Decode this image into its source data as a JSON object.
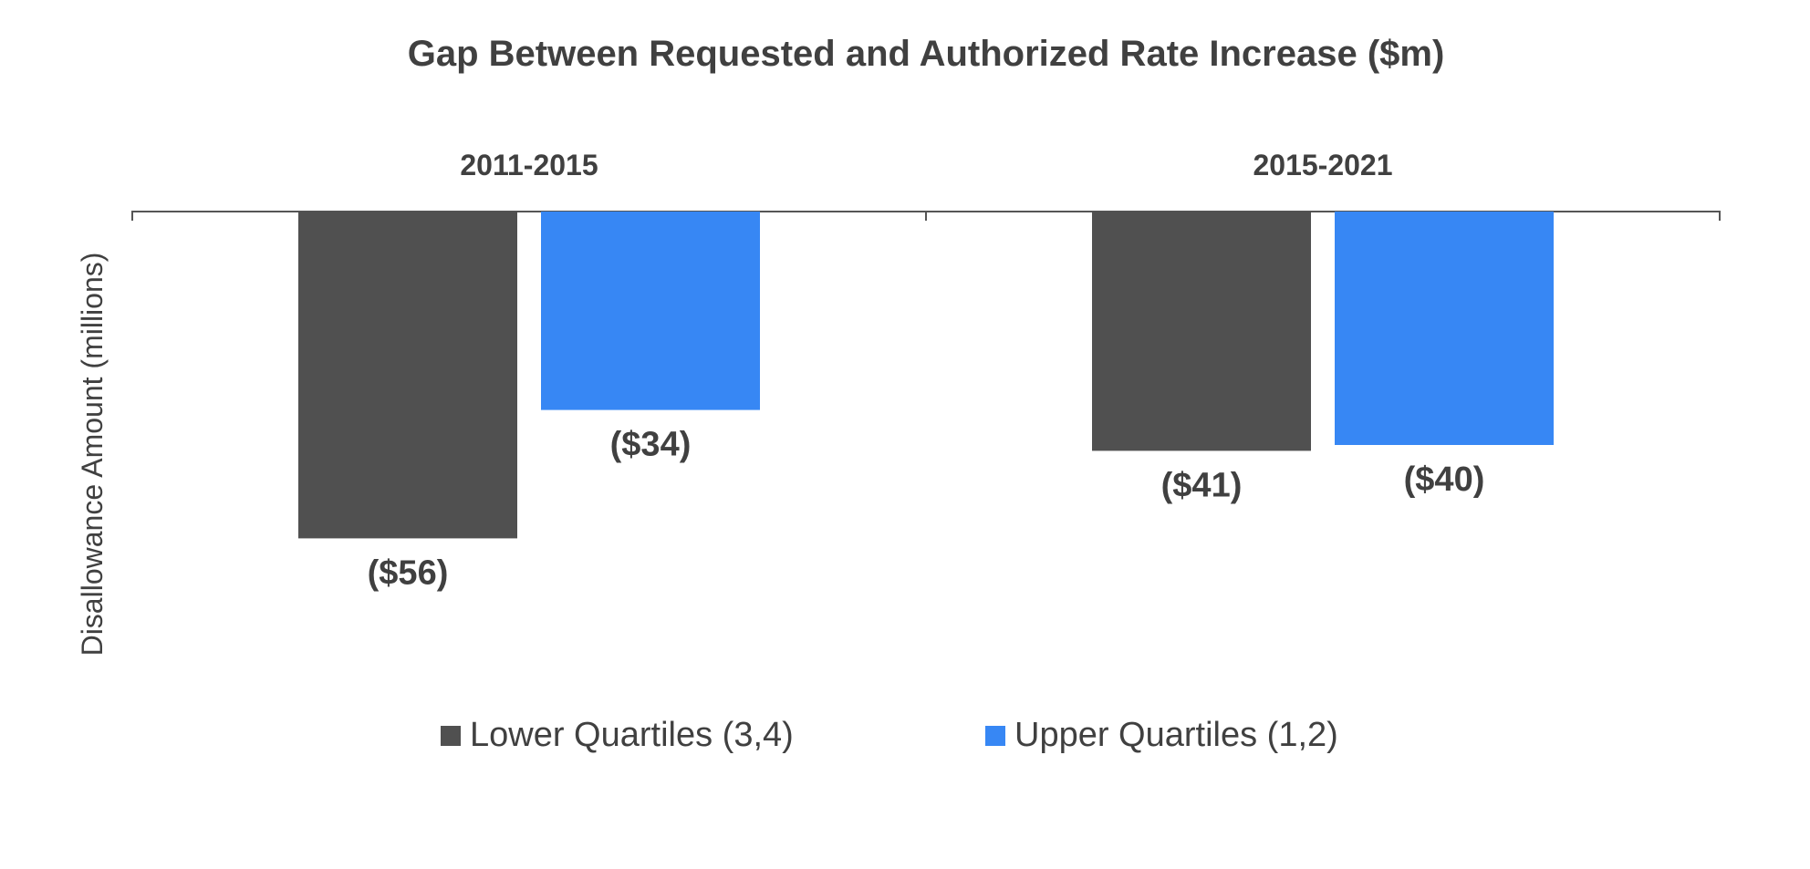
{
  "chart_data": {
    "type": "bar",
    "title": "Gap Between Requested and Authorized Rate Increase ($m)",
    "ylabel": "Disallowance Amount (millions)",
    "xlabel": "",
    "categories": [
      "2011-2015",
      "2015-2021"
    ],
    "series": [
      {
        "name": "Lower Quartiles (3,4)",
        "values": [
          -56,
          -41
        ],
        "labels": [
          "($56)",
          "($41)"
        ],
        "color": "#505050"
      },
      {
        "name": "Upper Quartiles (1,2)",
        "values": [
          -34,
          -40
        ],
        "labels": [
          "($34)",
          "($40)"
        ],
        "color": "#3787f4"
      }
    ],
    "ylim": [
      -80,
      0
    ],
    "grid": false,
    "category_axis_position": "top",
    "legend_position": "bottom"
  }
}
